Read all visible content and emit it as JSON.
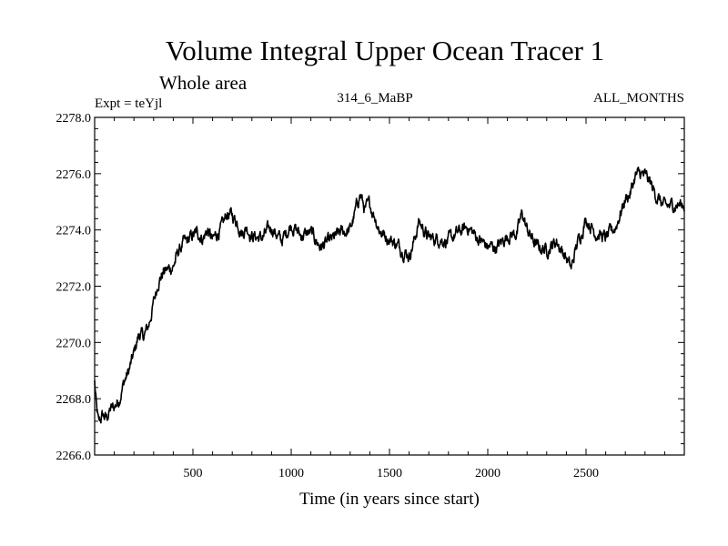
{
  "chart_data": {
    "type": "line",
    "title": "Volume Integral Upper Ocean Tracer 1",
    "subtitle": "Whole area",
    "header_left": "Expt = teYjl",
    "header_center": "314_6_MaBP",
    "header_right": "ALL_MONTHS",
    "xlabel": "Time (in years since start)",
    "ylabel": "",
    "xlim": [
      0,
      3000
    ],
    "ylim": [
      2266.0,
      2278.0
    ],
    "x_ticks": [
      500,
      1000,
      1500,
      2000,
      2500
    ],
    "x_tick_labels": [
      "500",
      "1000",
      "1500",
      "2000",
      "2500"
    ],
    "y_ticks": [
      2266.0,
      2268.0,
      2270.0,
      2272.0,
      2274.0,
      2276.0,
      2278.0
    ],
    "y_tick_labels": [
      "2266.0",
      "2268.0",
      "2270.0",
      "2272.0",
      "2274.0",
      "2276.0",
      "2278.0"
    ],
    "grid": false,
    "series": [
      {
        "name": "Tracer 1",
        "color": "#000000",
        "x": [
          0,
          10,
          20,
          40,
          60,
          80,
          100,
          125,
          150,
          175,
          200,
          225,
          250,
          275,
          300,
          325,
          350,
          375,
          400,
          425,
          450,
          475,
          500,
          525,
          550,
          575,
          600,
          625,
          650,
          675,
          700,
          725,
          750,
          775,
          800,
          850,
          900,
          950,
          1000,
          1050,
          1100,
          1150,
          1200,
          1250,
          1300,
          1325,
          1350,
          1375,
          1400,
          1425,
          1450,
          1475,
          1500,
          1550,
          1600,
          1625,
          1650,
          1700,
          1750,
          1800,
          1850,
          1900,
          1950,
          2000,
          2050,
          2100,
          2150,
          2175,
          2200,
          2250,
          2300,
          2350,
          2400,
          2425,
          2450,
          2500,
          2550,
          2600,
          2650,
          2700,
          2725,
          2750,
          2775,
          2800,
          2825,
          2850,
          2900,
          2950,
          3000
        ],
        "values": [
          2268.6,
          2267.6,
          2267.1,
          2267.4,
          2267.3,
          2267.6,
          2267.7,
          2268.0,
          2268.6,
          2269.0,
          2269.6,
          2270.3,
          2270.2,
          2270.6,
          2271.4,
          2272.2,
          2272.5,
          2272.6,
          2272.7,
          2273.2,
          2273.5,
          2273.6,
          2273.8,
          2273.9,
          2273.7,
          2274.0,
          2273.6,
          2273.9,
          2274.1,
          2274.6,
          2274.5,
          2274.3,
          2273.9,
          2274.1,
          2273.8,
          2273.7,
          2274.1,
          2273.6,
          2274.2,
          2273.8,
          2273.9,
          2273.4,
          2273.6,
          2273.9,
          2274.0,
          2274.6,
          2275.3,
          2274.7,
          2274.9,
          2274.5,
          2274.0,
          2273.8,
          2273.7,
          2273.4,
          2273.1,
          2273.6,
          2274.3,
          2273.7,
          2273.7,
          2273.6,
          2273.9,
          2274.1,
          2273.7,
          2273.4,
          2273.4,
          2273.8,
          2273.9,
          2274.6,
          2274.0,
          2273.4,
          2273.3,
          2273.6,
          2273.0,
          2272.6,
          2273.4,
          2274.4,
          2273.9,
          2273.7,
          2274.1,
          2275.1,
          2275.3,
          2275.9,
          2276.0,
          2275.9,
          2275.7,
          2275.3,
          2274.8,
          2274.9,
          2274.9
        ]
      }
    ]
  }
}
